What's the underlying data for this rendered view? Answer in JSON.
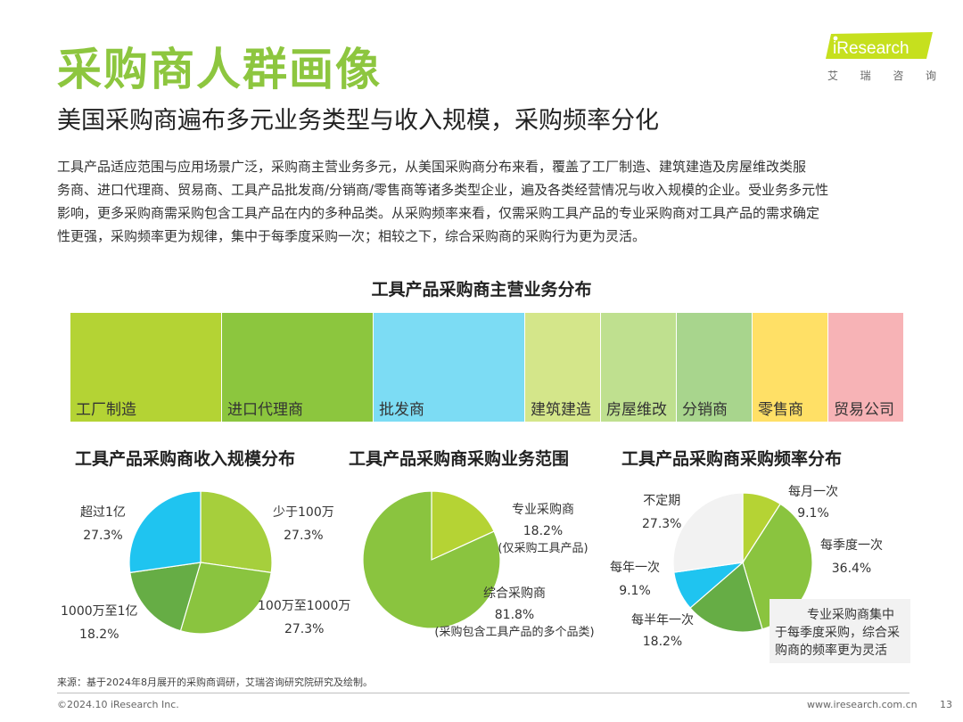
{
  "header": {
    "title": "采购商人群画像",
    "subtitle": "美国采购商遍布多元业务类型与收入规模，采购频率分化",
    "logo_text": "iResearch",
    "logo_sub": [
      "艾",
      "瑞",
      "咨",
      "询"
    ]
  },
  "description": [
    "工具产品适应范围与应用场景广泛，采购商主营业务多元，从美国采购商分布来看，覆盖了工厂制造、建筑建造及房屋维改类服",
    "务商、进口代理商、贸易商、工具产品批发商/分销商/零售商等诸多类型企业，遍及各类经营情况与收入规模的企业。受业务多元性",
    "影响，更多采购商需采购包含工具产品在内的多种品类。从采购频率来看，仅需采购工具产品的专业采购商对工具产品的需求确定",
    "性更强，采购频率更为规律，集中于每季度采购一次；相较之下，综合采购商的采购行为更为灵活。"
  ],
  "chart_data": [
    {
      "type": "bar",
      "title": "工具产品采购商主营业务分布",
      "categories": [
        "工厂制造",
        "进口代理商",
        "批发商",
        "建筑建造",
        "房屋维改",
        "分销商",
        "零售商",
        "贸易公司"
      ],
      "values": [
        2,
        2,
        2,
        1,
        1,
        1,
        1,
        1
      ],
      "colors": [
        "#b4d334",
        "#8cc63e",
        "#7cdcf4",
        "#d4e68a",
        "#bfe08f",
        "#a8d58d",
        "#ffe066",
        "#f7b3b6"
      ]
    },
    {
      "type": "pie",
      "title": "工具产品采购商收入规模分布",
      "start_angle": 0,
      "slices": [
        {
          "label": "少于100万",
          "value": 27.3,
          "text": "27.3%",
          "color": "#a6cf3c"
        },
        {
          "label": "100万至1000万",
          "value": 27.3,
          "text": "27.3%",
          "color": "#8ac43f"
        },
        {
          "label": "1000万至1亿",
          "value": 18.2,
          "text": "18.2%",
          "color": "#66ad45"
        },
        {
          "label": "超过1亿",
          "value": 27.3,
          "text": "27.3%",
          "color": "#1fc4f0"
        }
      ]
    },
    {
      "type": "pie",
      "title": "工具产品采购商采购业务范围",
      "start_angle": 0,
      "slices": [
        {
          "label": "专业采购商",
          "value": 18.2,
          "text": "18.2%",
          "note": "(仅采购工具产品)",
          "color": "#b5d334"
        },
        {
          "label": "综合采购商",
          "value": 81.8,
          "text": "81.8%",
          "note": "(采购包含工具产品的多个品类)",
          "color": "#8ac43f"
        }
      ]
    },
    {
      "type": "pie",
      "title": "工具产品采购商采购频率分布",
      "start_angle": 0,
      "slices": [
        {
          "label": "每月一次",
          "value": 9.1,
          "text": "9.1%",
          "color": "#b5d334"
        },
        {
          "label": "每季度一次",
          "value": 36.4,
          "text": "36.4%",
          "color": "#8ac43f"
        },
        {
          "label": "每半年一次",
          "value": 18.2,
          "text": "18.2%",
          "color": "#66ad45"
        },
        {
          "label": "每年一次",
          "value": 9.1,
          "text": "9.1%",
          "color": "#1fc4f0"
        },
        {
          "label": "不定期",
          "value": 27.3,
          "text": "27.3%",
          "color": "#f2f2f2"
        }
      ]
    }
  ],
  "note": [
    "专业采购商集中",
    "于每季度采购，综合采",
    "购商的频率更为灵活"
  ],
  "footer": {
    "source": "来源：基于2024年8月展开的采购商调研，艾瑞咨询研究院研究及绘制。",
    "copyright": "©2024.10 iResearch Inc.",
    "website": "www.iresearch.com.cn",
    "page": "13"
  },
  "colors": {
    "brand_green": "#8dc63f",
    "logo_green": "#c6e01e"
  }
}
